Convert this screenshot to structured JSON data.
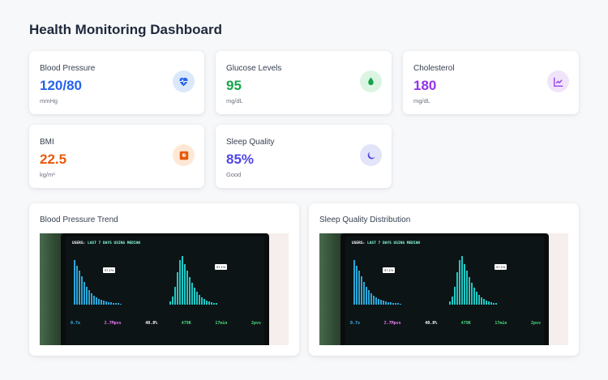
{
  "page": {
    "title": "Health Monitoring Dashboard"
  },
  "metrics": [
    {
      "label": "Blood Pressure",
      "value": "120/80",
      "unit": "mmHg",
      "color": "#2563eb",
      "icon": "heart-pulse-icon",
      "icon_bg": "#dbe8fb"
    },
    {
      "label": "Glucose Levels",
      "value": "95",
      "unit": "mg/dL",
      "color": "#16a34a",
      "icon": "droplet-icon",
      "icon_bg": "#dcf5e3"
    },
    {
      "label": "Cholesterol",
      "value": "180",
      "unit": "mg/dL",
      "color": "#9333ea",
      "icon": "chart-line-icon",
      "icon_bg": "#f0e4fb"
    },
    {
      "label": "BMI",
      "value": "22.5",
      "unit": "kg/m²",
      "color": "#ea580c",
      "icon": "weight-scale-icon",
      "icon_bg": "#fde8d6"
    },
    {
      "label": "Sleep Quality",
      "value": "85%",
      "unit": "Good",
      "color": "#4f46e5",
      "icon": "moon-icon",
      "icon_bg": "#e2e4fa"
    }
  ],
  "charts": [
    {
      "title": "Blood Pressure Trend",
      "image": "laptop-analytics-photo"
    },
    {
      "title": "Sleep Quality Distribution",
      "image": "laptop-analytics-photo"
    }
  ],
  "photo_screen": {
    "header_prefix": "USERS:",
    "header_accent": "LAST 7 DAYS USING MEDIAN",
    "stats": [
      "0.7s",
      "2.7Mpvs",
      "40.8%",
      "479K",
      "17min",
      "2pvs"
    ]
  }
}
